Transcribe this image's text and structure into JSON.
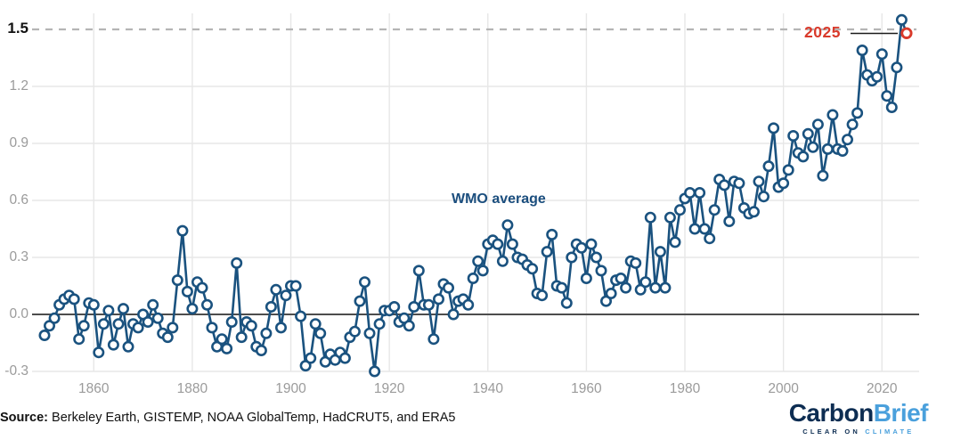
{
  "chart_data": {
    "type": "line",
    "series_name": "WMO average",
    "x_start": 1850,
    "x_end": 2025,
    "x": [
      1850,
      1851,
      1852,
      1853,
      1854,
      1855,
      1856,
      1857,
      1858,
      1859,
      1860,
      1861,
      1862,
      1863,
      1864,
      1865,
      1866,
      1867,
      1868,
      1869,
      1870,
      1871,
      1872,
      1873,
      1874,
      1875,
      1876,
      1877,
      1878,
      1879,
      1880,
      1881,
      1882,
      1883,
      1884,
      1885,
      1886,
      1887,
      1888,
      1889,
      1890,
      1891,
      1892,
      1893,
      1894,
      1895,
      1896,
      1897,
      1898,
      1899,
      1900,
      1901,
      1902,
      1903,
      1904,
      1905,
      1906,
      1907,
      1908,
      1909,
      1910,
      1911,
      1912,
      1913,
      1914,
      1915,
      1916,
      1917,
      1918,
      1919,
      1920,
      1921,
      1922,
      1923,
      1924,
      1925,
      1926,
      1927,
      1928,
      1929,
      1930,
      1931,
      1932,
      1933,
      1934,
      1935,
      1936,
      1937,
      1938,
      1939,
      1940,
      1941,
      1942,
      1943,
      1944,
      1945,
      1946,
      1947,
      1948,
      1949,
      1950,
      1951,
      1952,
      1953,
      1954,
      1955,
      1956,
      1957,
      1958,
      1959,
      1960,
      1961,
      1962,
      1963,
      1964,
      1965,
      1966,
      1967,
      1968,
      1969,
      1970,
      1971,
      1972,
      1973,
      1974,
      1975,
      1976,
      1977,
      1978,
      1979,
      1980,
      1981,
      1982,
      1983,
      1984,
      1985,
      1986,
      1987,
      1988,
      1989,
      1990,
      1991,
      1992,
      1993,
      1994,
      1995,
      1996,
      1997,
      1998,
      1999,
      2000,
      2001,
      2002,
      2003,
      2004,
      2005,
      2006,
      2007,
      2008,
      2009,
      2010,
      2011,
      2012,
      2013,
      2014,
      2015,
      2016,
      2017,
      2018,
      2019,
      2020,
      2021,
      2022,
      2023,
      2024,
      2025
    ],
    "values": [
      -0.11,
      -0.06,
      -0.02,
      0.05,
      0.08,
      0.1,
      0.08,
      -0.13,
      -0.06,
      0.06,
      0.05,
      -0.2,
      -0.05,
      0.02,
      -0.16,
      -0.05,
      0.03,
      -0.17,
      -0.05,
      -0.07,
      0.0,
      -0.04,
      0.05,
      -0.02,
      -0.1,
      -0.12,
      -0.07,
      0.18,
      0.44,
      0.12,
      0.03,
      0.17,
      0.14,
      0.05,
      -0.07,
      -0.17,
      -0.13,
      -0.18,
      -0.04,
      0.27,
      -0.12,
      -0.04,
      -0.06,
      -0.17,
      -0.19,
      -0.1,
      0.04,
      0.13,
      -0.07,
      0.1,
      0.15,
      0.15,
      -0.01,
      -0.27,
      -0.23,
      -0.05,
      -0.1,
      -0.25,
      -0.21,
      -0.24,
      -0.2,
      -0.23,
      -0.12,
      -0.09,
      0.07,
      0.17,
      -0.1,
      -0.3,
      -0.05,
      0.02,
      0.02,
      0.04,
      -0.04,
      -0.02,
      -0.06,
      0.04,
      0.23,
      0.05,
      0.05,
      -0.13,
      0.08,
      0.16,
      0.14,
      0.0,
      0.07,
      0.08,
      0.05,
      0.19,
      0.28,
      0.23,
      0.37,
      0.39,
      0.37,
      0.28,
      0.47,
      0.37,
      0.3,
      0.29,
      0.26,
      0.24,
      0.11,
      0.1,
      0.33,
      0.42,
      0.15,
      0.14,
      0.06,
      0.3,
      0.37,
      0.35,
      0.19,
      0.37,
      0.3,
      0.23,
      0.07,
      0.11,
      0.18,
      0.19,
      0.14,
      0.28,
      0.27,
      0.13,
      0.17,
      0.51,
      0.14,
      0.33,
      0.14,
      0.51,
      0.38,
      0.55,
      0.61,
      0.64,
      0.45,
      0.64,
      0.45,
      0.4,
      0.55,
      0.71,
      0.68,
      0.49,
      0.7,
      0.69,
      0.56,
      0.53,
      0.54,
      0.7,
      0.62,
      0.78,
      0.98,
      0.67,
      0.69,
      0.76,
      0.94,
      0.85,
      0.83,
      0.95,
      0.88,
      1.0,
      0.73,
      0.87,
      1.05,
      0.87,
      0.86,
      0.92,
      1.0,
      1.06,
      1.39,
      1.26,
      1.23,
      1.25,
      1.37,
      1.15,
      1.09,
      1.3,
      1.55,
      1.48
    ],
    "highlight_year": 2025,
    "highlight_value": 1.48,
    "threshold_value": 1.5,
    "y_ticks": [
      {
        "v": -0.3,
        "label": "-0.3",
        "emphasis": false
      },
      {
        "v": 0.0,
        "label": "0.0",
        "emphasis": false
      },
      {
        "v": 0.3,
        "label": "0.3",
        "emphasis": false
      },
      {
        "v": 0.6,
        "label": "0.6",
        "emphasis": false
      },
      {
        "v": 0.9,
        "label": "0.9",
        "emphasis": false
      },
      {
        "v": 1.2,
        "label": "1.2",
        "emphasis": false
      },
      {
        "v": 1.5,
        "label": "1.5",
        "emphasis": true
      }
    ],
    "x_ticks": [
      1860,
      1880,
      1900,
      1920,
      1940,
      1960,
      1980,
      2000,
      2020
    ],
    "ylim": [
      -0.38,
      1.62
    ],
    "grid": true,
    "legend_position": "none",
    "marker_style": "open-circle"
  },
  "annotations": {
    "wmo_label": "WMO average",
    "year_label": "2025"
  },
  "footer": {
    "source_prefix": "Source:",
    "source_text": " Berkeley Earth, GISTEMP, NOAA GlobalTemp, HadCRUT5, and ERA5"
  },
  "logo": {
    "part1": "Carbon",
    "part2": "Brief",
    "tagline_dark": "CLEAR ON ",
    "tagline_light": "CLIMATE"
  },
  "colors": {
    "line": "#1a527f",
    "marker_fill": "#ffffff",
    "highlight": "#d93a2b",
    "axis_text": "#9b9b9b",
    "grid": "#e7e7e7",
    "zero_line": "#4d4d4d",
    "dashed_line": "#b5b5b5",
    "annotation_line": "#1a1a1a",
    "wmo_text": "#1b4e7e",
    "logo_dark": "#0d2d52",
    "logo_light": "#4aa0dc"
  }
}
